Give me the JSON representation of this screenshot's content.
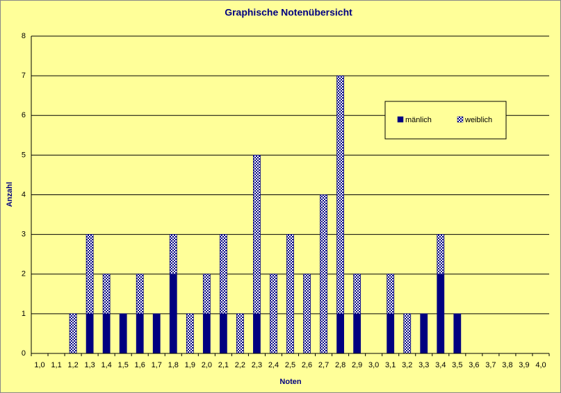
{
  "chart_data": {
    "type": "bar",
    "stacked": true,
    "title": "Graphische  Notenübersicht",
    "x_label": "Noten",
    "y_label": "Anzahl",
    "categories": [
      "1,0",
      "1,1",
      "1,2",
      "1,3",
      "1,4",
      "1,5",
      "1,6",
      "1,7",
      "1,8",
      "1,9",
      "2,0",
      "2,1",
      "2,2",
      "2,3",
      "2,4",
      "2,5",
      "2,6",
      "2,7",
      "2,8",
      "2,9",
      "3,0",
      "3,1",
      "3,2",
      "3,3",
      "3,4",
      "3,5",
      "3,6",
      "3,7",
      "3,8",
      "3,9",
      "4,0"
    ],
    "series": [
      {
        "name": "mänlich",
        "color": "#000080",
        "values": [
          0,
          0,
          0,
          1,
          1,
          1,
          1,
          1,
          2,
          0,
          1,
          1,
          0,
          1,
          0,
          0,
          0,
          0,
          1,
          1,
          0,
          1,
          0,
          1,
          2,
          1,
          0,
          0,
          0,
          0,
          0
        ]
      },
      {
        "name": "weiblich",
        "color": "checkered",
        "values": [
          0,
          0,
          1,
          2,
          1,
          0,
          1,
          0,
          1,
          1,
          1,
          2,
          1,
          4,
          2,
          3,
          2,
          4,
          6,
          1,
          0,
          1,
          1,
          0,
          1,
          0,
          0,
          0,
          0,
          0,
          0
        ]
      }
    ],
    "ylim": [
      0,
      8
    ],
    "yticks": [
      0,
      1,
      2,
      3,
      4,
      5,
      6,
      7,
      8
    ],
    "grid": true,
    "legend": "upper right"
  }
}
